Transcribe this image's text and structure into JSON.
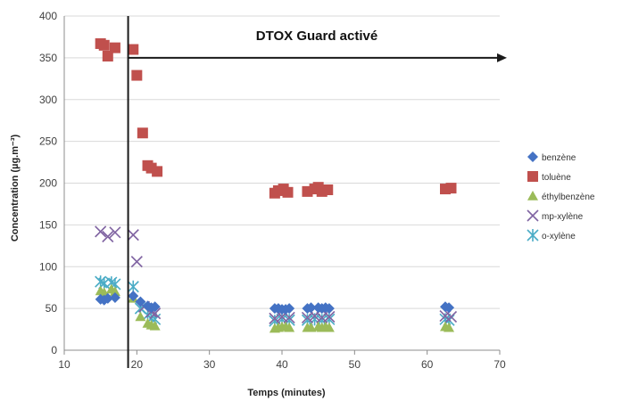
{
  "chart_data": {
    "type": "scatter",
    "title": "",
    "xlabel": "Temps (minutes)",
    "ylabel": "Concentration (µg.m⁻³)",
    "xlim": [
      10,
      70
    ],
    "ylim": [
      0,
      400
    ],
    "x_ticks": [
      10,
      20,
      30,
      40,
      50,
      60,
      70
    ],
    "y_ticks": [
      0,
      50,
      100,
      150,
      200,
      250,
      300,
      350,
      400
    ],
    "grid": "horizontal",
    "legend_position": "right",
    "annotation": {
      "text": "DTOX Guard activé",
      "vertical_line_x": 18.8,
      "arrow_y": 350,
      "arrow_to_x": 70
    },
    "series": [
      {
        "name": "benzène",
        "marker": "diamond",
        "color": "#4472c4",
        "points": [
          [
            15,
            61
          ],
          [
            15.5,
            60
          ],
          [
            16,
            62
          ],
          [
            17,
            63
          ],
          [
            19.5,
            65
          ],
          [
            20.5,
            58
          ],
          [
            21.5,
            53
          ],
          [
            22,
            51
          ],
          [
            22.5,
            52
          ],
          [
            39,
            50
          ],
          [
            39.5,
            50
          ],
          [
            40,
            49
          ],
          [
            40.5,
            49
          ],
          [
            41,
            50
          ],
          [
            43.5,
            50
          ],
          [
            44,
            51
          ],
          [
            45,
            51
          ],
          [
            45.5,
            50
          ],
          [
            46,
            51
          ],
          [
            46.5,
            50
          ],
          [
            62.5,
            52
          ],
          [
            63,
            51
          ]
        ]
      },
      {
        "name": "toluène",
        "marker": "square",
        "color": "#c0504d",
        "points": [
          [
            15,
            367
          ],
          [
            15.5,
            365
          ],
          [
            16,
            352
          ],
          [
            17,
            362
          ],
          [
            19.5,
            360
          ],
          [
            20,
            329
          ],
          [
            20.8,
            260
          ],
          [
            21.5,
            221
          ],
          [
            22,
            218
          ],
          [
            22.8,
            214
          ],
          [
            39,
            188
          ],
          [
            39.5,
            191
          ],
          [
            40.2,
            193
          ],
          [
            40.8,
            189
          ],
          [
            43.5,
            190
          ],
          [
            44.5,
            193
          ],
          [
            45,
            195
          ],
          [
            45.5,
            190
          ],
          [
            46.3,
            192
          ],
          [
            62.5,
            193
          ],
          [
            63.3,
            194
          ]
        ]
      },
      {
        "name": "éthylbenzène",
        "marker": "triangle",
        "color": "#9bbb59",
        "points": [
          [
            15,
            71
          ],
          [
            15.5,
            69
          ],
          [
            16.5,
            73
          ],
          [
            17,
            70
          ],
          [
            19.5,
            62
          ],
          [
            20.5,
            40
          ],
          [
            21.5,
            32
          ],
          [
            22,
            30
          ],
          [
            22.5,
            29
          ],
          [
            39,
            26
          ],
          [
            39.5,
            27
          ],
          [
            40,
            28
          ],
          [
            40.5,
            28
          ],
          [
            41,
            27
          ],
          [
            43.5,
            27
          ],
          [
            44,
            27
          ],
          [
            45,
            28
          ],
          [
            45.5,
            27
          ],
          [
            46,
            28
          ],
          [
            46.5,
            27
          ],
          [
            62.5,
            28
          ],
          [
            63,
            27
          ]
        ]
      },
      {
        "name": "mp-xylène",
        "marker": "x",
        "color": "#8064a2",
        "points": [
          [
            15,
            142
          ],
          [
            16,
            136
          ],
          [
            17,
            141
          ],
          [
            19.5,
            138
          ],
          [
            20,
            106
          ],
          [
            21,
            52
          ],
          [
            22,
            46
          ],
          [
            22.5,
            44
          ],
          [
            39,
            38
          ],
          [
            40,
            40
          ],
          [
            41,
            39
          ],
          [
            43.5,
            39
          ],
          [
            44.5,
            41
          ],
          [
            45.5,
            39
          ],
          [
            46.5,
            40
          ],
          [
            62.5,
            41
          ],
          [
            63.3,
            40
          ]
        ]
      },
      {
        "name": "o-xylène",
        "marker": "star",
        "color": "#4bacc6",
        "points": [
          [
            15,
            82
          ],
          [
            15.5,
            80
          ],
          [
            16.5,
            81
          ],
          [
            17,
            79
          ],
          [
            19.5,
            76
          ],
          [
            20.5,
            50
          ],
          [
            21.5,
            42
          ],
          [
            22,
            38
          ],
          [
            22.5,
            37
          ],
          [
            39,
            35
          ],
          [
            40,
            37
          ],
          [
            41,
            36
          ],
          [
            43.5,
            36
          ],
          [
            44.5,
            37
          ],
          [
            45.5,
            36
          ],
          [
            46.5,
            37
          ],
          [
            62.5,
            37
          ],
          [
            63,
            36
          ]
        ]
      }
    ]
  }
}
